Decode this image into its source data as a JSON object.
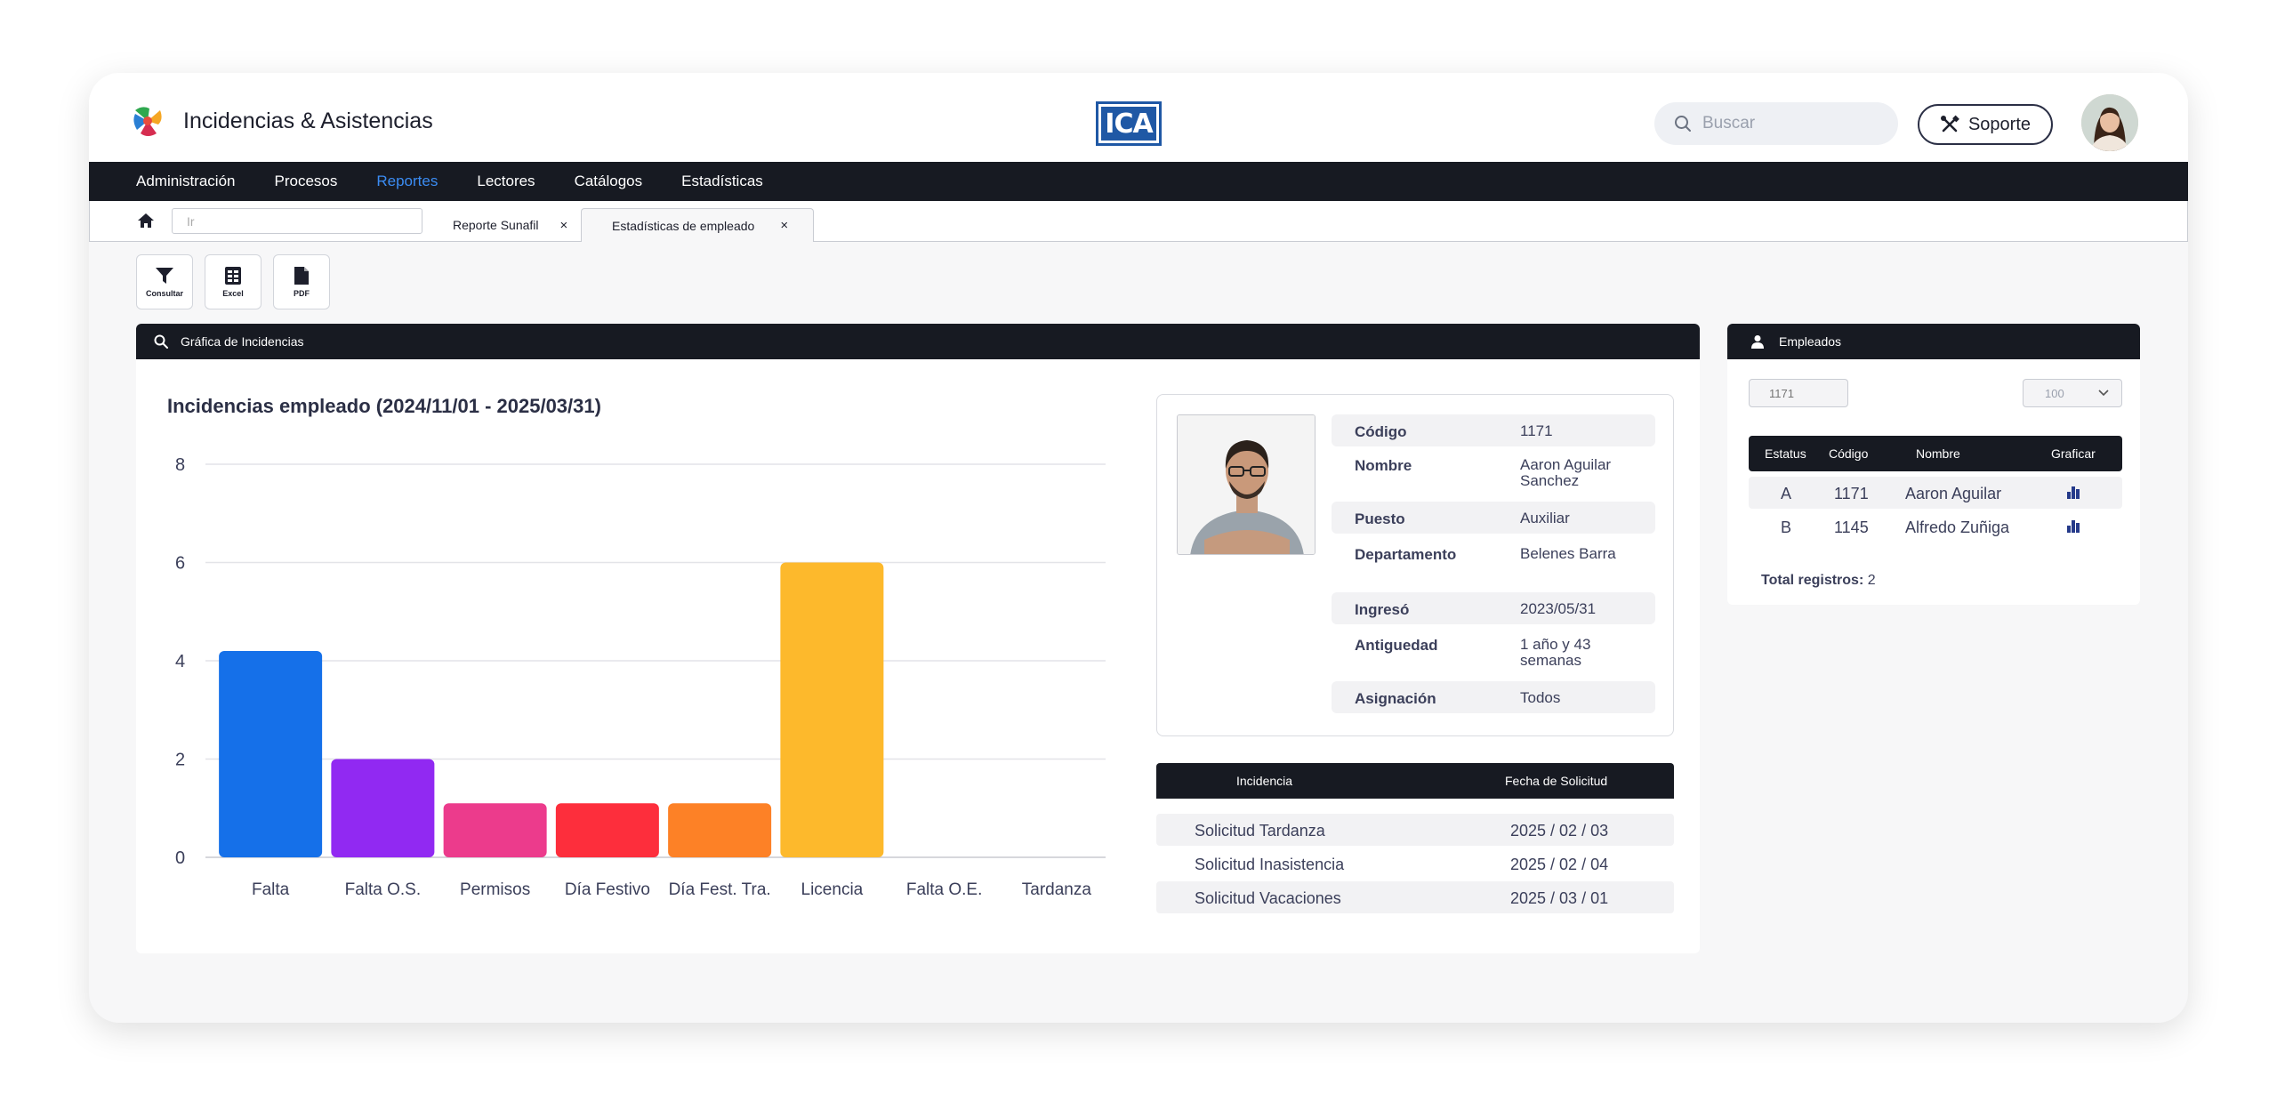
{
  "header": {
    "app_title": "Incidencias & Asistencias",
    "center_logo_text": "ICA",
    "search_placeholder": "Buscar",
    "support_label": "Soporte"
  },
  "nav": {
    "items": [
      "Administración",
      "Procesos",
      "Reportes",
      "Lectores",
      "Catálogos",
      "Estadísticas"
    ],
    "active": "Reportes"
  },
  "tabs": {
    "go_placeholder": "Ir",
    "items": [
      {
        "label": "Reporte Sunafil",
        "close": "×"
      },
      {
        "label": "Estadísticas de empleado",
        "close": "×"
      }
    ],
    "active": "Estadísticas de empleado"
  },
  "toolbar": {
    "consultar": "Consultar",
    "excel": "Excel",
    "pdf": "PDF"
  },
  "chart_panel": {
    "header": "Gráfica de Incidencias"
  },
  "chart_data": {
    "type": "bar",
    "title": "Incidencias empleado (2024/11/01 - 2025/03/31)",
    "categories": [
      "Falta",
      "Falta O.S.",
      "Permisos",
      "Día Festivo",
      "Día Fest. Tra.",
      "Licencia",
      "Falta O.E.",
      "Tardanza"
    ],
    "values": [
      4.2,
      2,
      1.1,
      1.1,
      1.1,
      6,
      0,
      0
    ],
    "colors": [
      "#1570e9",
      "#9129f2",
      "#ec3b8c",
      "#fd2e3c",
      "#fd8126",
      "#fdb92c",
      "#cccccc",
      "#cccccc"
    ],
    "ylim": [
      0,
      8
    ],
    "yticks": [
      0,
      2,
      4,
      6,
      8
    ],
    "grid": true,
    "xlabel": "",
    "ylabel": ""
  },
  "profile": {
    "rows": [
      {
        "key": "Código",
        "value": "1171"
      },
      {
        "key": "Nombre",
        "value": "Aaron Aguilar Sanchez"
      },
      {
        "key": "Puesto",
        "value": "Auxiliar"
      },
      {
        "key": "Departamento",
        "value": "Belenes Barra"
      },
      {
        "key": "Ingresó",
        "value": "2023/05/31"
      },
      {
        "key": "Antiguedad",
        "value": "1 año y 43 semanas"
      },
      {
        "key": "Asignación",
        "value": "Todos"
      }
    ]
  },
  "incidencias": {
    "col_incidencia": "Incidencia",
    "col_fecha": "Fecha de Solicitud",
    "rows": [
      {
        "incidencia": "Solicitud Tardanza",
        "fecha": "2025 / 02 / 03"
      },
      {
        "incidencia": "Solicitud Inasistencia",
        "fecha": "2025 / 02 / 04"
      },
      {
        "incidencia": "Solicitud Vacaciones",
        "fecha": "2025 / 03 / 01"
      }
    ]
  },
  "empleados": {
    "header": "Empleados",
    "search_placeholder": "1171",
    "page_size": "100",
    "columns": [
      "Estatus",
      "Código",
      "Nombre",
      "Graficar"
    ],
    "rows": [
      {
        "estatus": "A",
        "codigo": "1171",
        "nombre": "Aaron Aguilar",
        "graficar_icon": "bar-chart-icon"
      },
      {
        "estatus": "B",
        "codigo": "1145",
        "nombre": "Alfredo Zuñiga",
        "graficar_icon": "bar-chart-icon"
      }
    ],
    "total_label": "Total registros:",
    "total_value": "2"
  },
  "colors": {
    "dark": "#171a22",
    "accent_nav": "#3b8cf3",
    "ica_blue": "#1f58a5"
  }
}
